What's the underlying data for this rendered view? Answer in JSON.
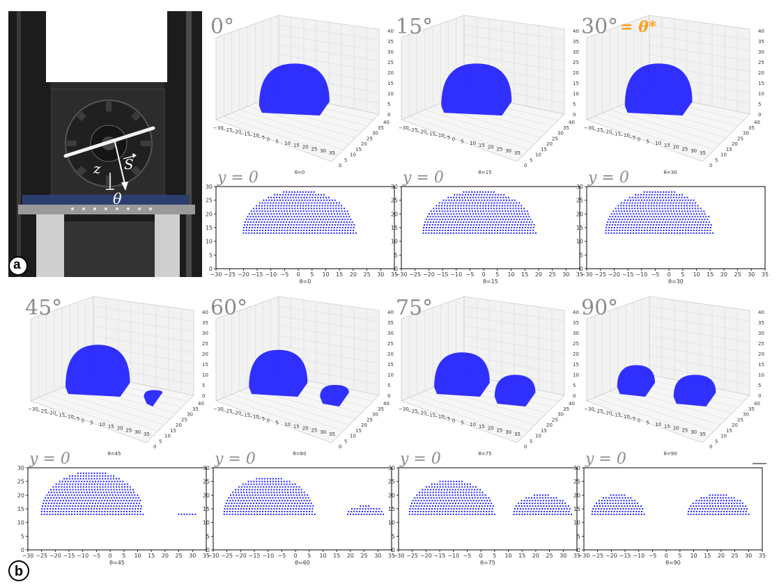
{
  "photo": {
    "label_z": "z",
    "label_s": "S",
    "label_theta": "θ",
    "panel_letter": "a"
  },
  "panel_b_letter": "b",
  "colors": {
    "points": "#1f1fff",
    "angle_text": "#8c8c8c",
    "highlight": "#ff9f1c",
    "grid": "#d9d9d9"
  },
  "angle_labels": [
    "0°",
    "15°",
    "30°",
    "45°",
    "60°",
    "75°",
    "90°"
  ],
  "theta_star_label": "= θ*",
  "slice_label": "y = 0",
  "plot3d_axes": {
    "x_ticks": [
      "−30",
      "−25",
      "−20",
      "−15",
      "−10",
      "−5",
      "0",
      "5",
      "10",
      "15",
      "20",
      "25",
      "30",
      "35"
    ],
    "y_ticks": [
      "0",
      "5",
      "10",
      "15",
      "20",
      "25",
      "30",
      "35",
      "40"
    ],
    "z_ticks": [
      "0",
      "5",
      "10",
      "15",
      "20",
      "25",
      "30",
      "35",
      "40"
    ]
  },
  "plot3d_titles": [
    "θ=0",
    "θ=15",
    "θ=30",
    "θ=45",
    "θ=60",
    "θ=75",
    "θ=90"
  ],
  "chart_data": [
    {
      "type": "scatter",
      "title": "θ=0",
      "xlim": [
        -30,
        35
      ],
      "ylim": [
        0,
        30
      ],
      "x_ticks": [
        "−30",
        "−25",
        "−20",
        "−15",
        "−10",
        "−5",
        "0",
        "5",
        "10",
        "15",
        "20",
        "25",
        "30",
        "35"
      ],
      "y_ticks": [
        "0",
        "5",
        "10",
        "15",
        "20",
        "25",
        "30"
      ],
      "series": [
        {
          "blobs": [
            {
              "x_min": -20,
              "x_max": 21,
              "y_min": 13,
              "y_max": 28
            }
          ]
        }
      ]
    },
    {
      "type": "scatter",
      "title": "θ=15",
      "xlim": [
        -30,
        35
      ],
      "ylim": [
        0,
        30
      ],
      "x_ticks": [
        "−30",
        "−25",
        "−20",
        "−15",
        "−10",
        "−5",
        "0",
        "5",
        "10",
        "15",
        "20",
        "25",
        "30",
        "35"
      ],
      "y_ticks": [
        "0",
        "5",
        "10",
        "15",
        "20",
        "25",
        "30"
      ],
      "series": [
        {
          "blobs": [
            {
              "x_min": -22,
              "x_max": 19,
              "y_min": 13,
              "y_max": 28
            }
          ]
        }
      ]
    },
    {
      "type": "scatter",
      "title": "θ=30",
      "xlim": [
        -30,
        35
      ],
      "ylim": [
        0,
        30
      ],
      "x_ticks": [
        "−30",
        "−25",
        "−20",
        "−15",
        "−10",
        "−5",
        "0",
        "5",
        "10",
        "15",
        "20",
        "25",
        "30",
        "35"
      ],
      "y_ticks": [
        "0",
        "5",
        "10",
        "15",
        "20",
        "25",
        "30"
      ],
      "series": [
        {
          "blobs": [
            {
              "x_min": -23,
              "x_max": 16,
              "y_min": 13,
              "y_max": 28
            }
          ]
        }
      ]
    },
    {
      "type": "scatter",
      "title": "θ=45",
      "xlim": [
        -30,
        35
      ],
      "ylim": [
        0,
        30
      ],
      "x_ticks": [
        "−30",
        "−25",
        "−20",
        "−15",
        "−10",
        "−5",
        "0",
        "5",
        "10",
        "15",
        "20",
        "25",
        "30",
        "35"
      ],
      "y_ticks": [
        "0",
        "5",
        "10",
        "15",
        "20",
        "25",
        "30"
      ],
      "series": [
        {
          "blobs": [
            {
              "x_min": -25,
              "x_max": 12,
              "y_min": 13,
              "y_max": 28
            },
            {
              "x_min": 25,
              "x_max": 31,
              "y_min": 13,
              "y_max": 13
            }
          ]
        }
      ]
    },
    {
      "type": "scatter",
      "title": "θ=60",
      "xlim": [
        -30,
        35
      ],
      "ylim": [
        0,
        30
      ],
      "x_ticks": [
        "−30",
        "−25",
        "−20",
        "−15",
        "−10",
        "−5",
        "0",
        "5",
        "10",
        "15",
        "20",
        "25",
        "30",
        "35"
      ],
      "y_ticks": [
        "0",
        "5",
        "10",
        "15",
        "20",
        "25",
        "30"
      ],
      "series": [
        {
          "blobs": [
            {
              "x_min": -26,
              "x_max": 7,
              "y_min": 13,
              "y_max": 26
            },
            {
              "x_min": 19,
              "x_max": 32,
              "y_min": 13,
              "y_max": 16
            }
          ]
        }
      ]
    },
    {
      "type": "scatter",
      "title": "θ=75",
      "xlim": [
        -30,
        35
      ],
      "ylim": [
        0,
        30
      ],
      "x_ticks": [
        "−30",
        "−25",
        "−20",
        "−15",
        "−10",
        "−5",
        "0",
        "5",
        "10",
        "15",
        "20",
        "25",
        "30",
        "35"
      ],
      "y_ticks": [
        "0",
        "5",
        "10",
        "15",
        "20",
        "25",
        "30"
      ],
      "series": [
        {
          "blobs": [
            {
              "x_min": -26,
              "x_max": 5,
              "y_min": 13,
              "y_max": 25
            },
            {
              "x_min": 12,
              "x_max": 33,
              "y_min": 13,
              "y_max": 20
            }
          ]
        }
      ]
    },
    {
      "type": "scatter",
      "title": "θ=90",
      "xlim": [
        -30,
        35
      ],
      "ylim": [
        0,
        30
      ],
      "x_ticks": [
        "−30",
        "−25",
        "−20",
        "−15",
        "−10",
        "−5",
        "0",
        "5",
        "10",
        "15",
        "20",
        "25",
        "30",
        "35"
      ],
      "y_ticks": [
        "0",
        "5",
        "10",
        "15",
        "20",
        "25",
        "30"
      ],
      "series": [
        {
          "blobs": [
            {
              "x_min": -27,
              "x_max": -8,
              "y_min": 13,
              "y_max": 20
            },
            {
              "x_min": 8,
              "x_max": 30,
              "y_min": 13,
              "y_max": 20
            }
          ]
        }
      ]
    }
  ]
}
